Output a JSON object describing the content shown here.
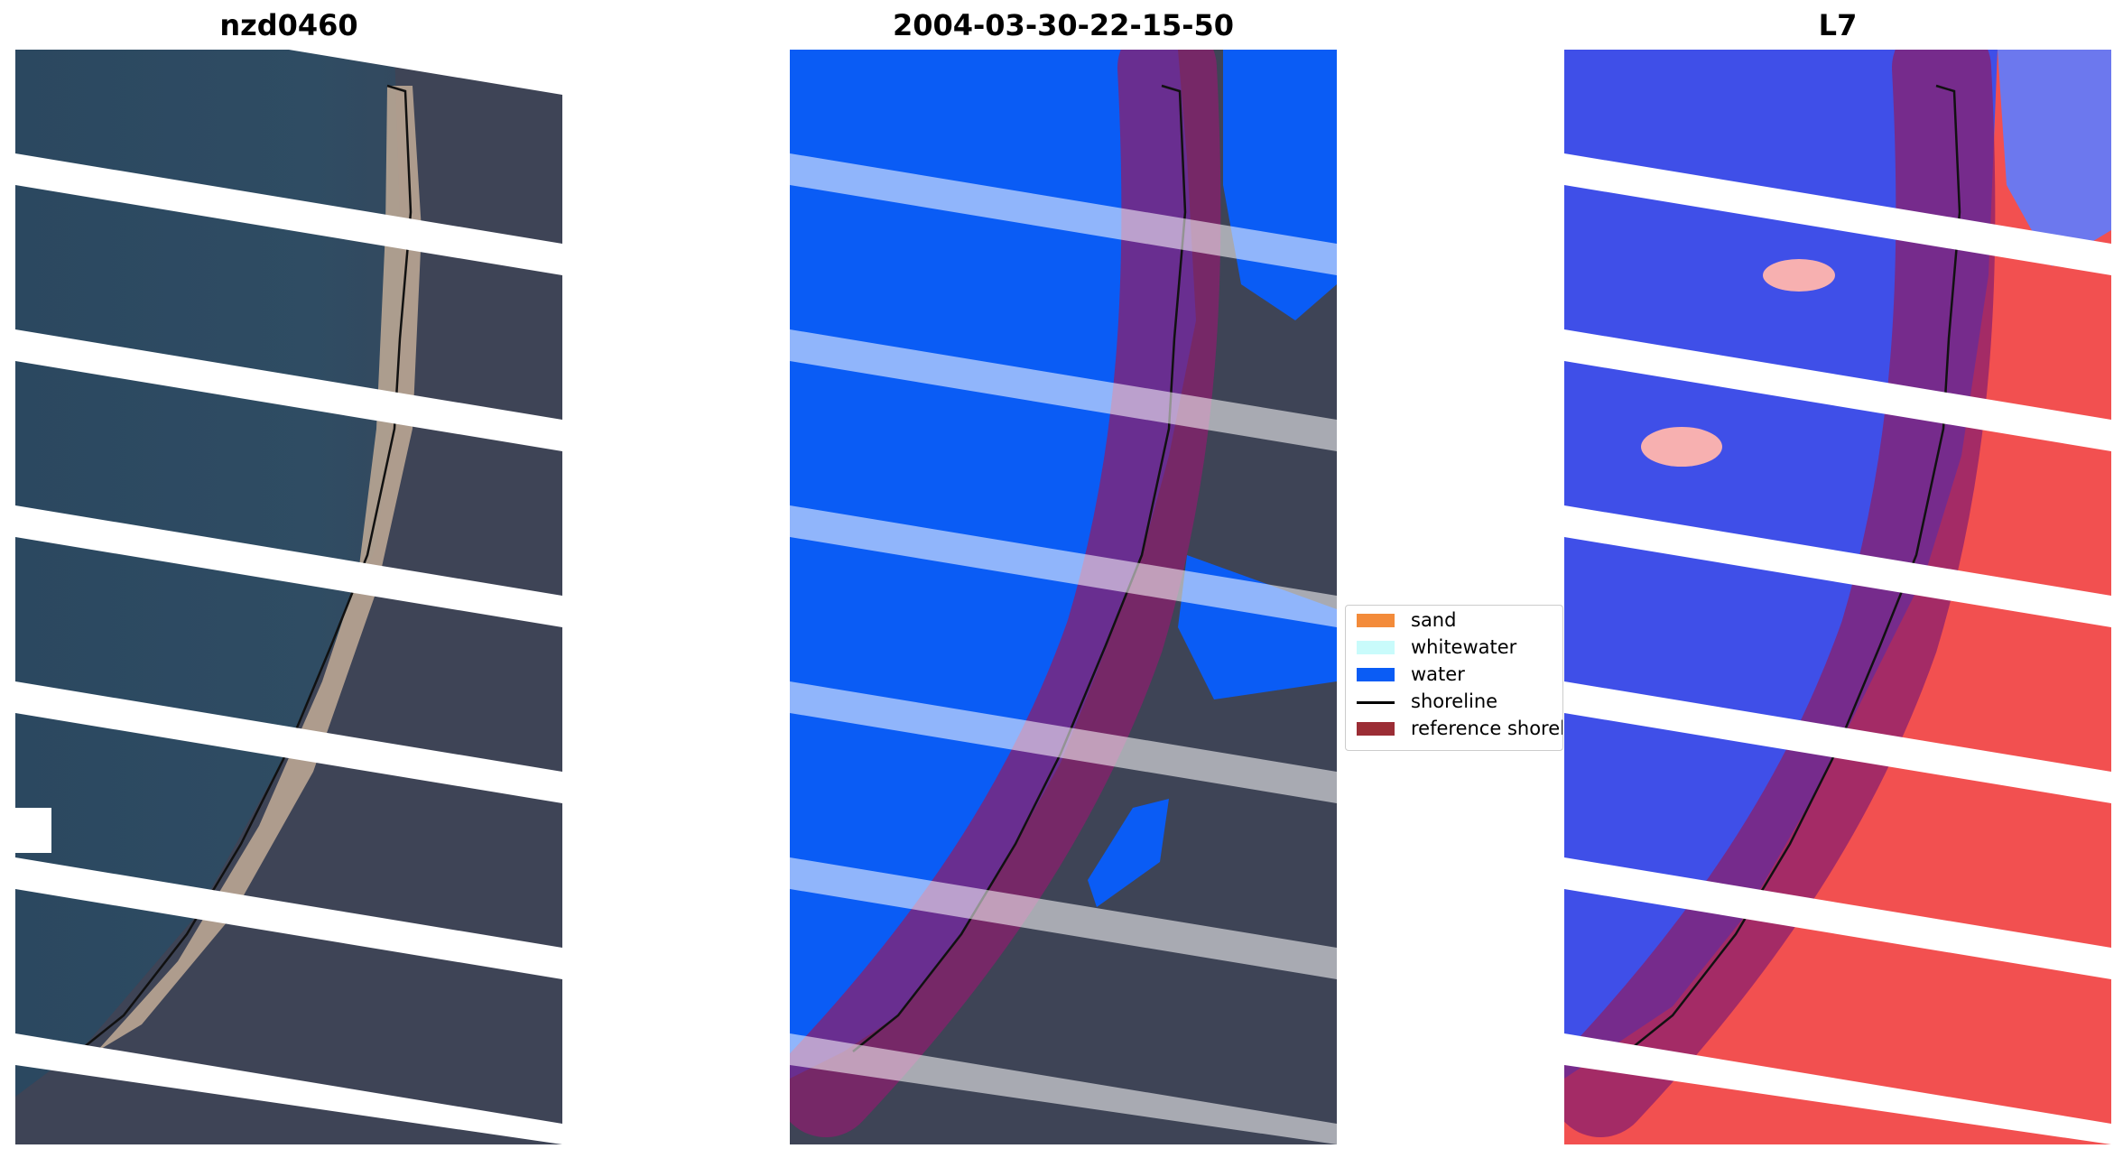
{
  "panels": [
    {
      "title": "nzd0460"
    },
    {
      "title": "2004-03-30-22-15-50"
    },
    {
      "title": "L7"
    }
  ],
  "legend": {
    "items": [
      {
        "label": "sand",
        "color": "#f38b3a",
        "kind": "patch"
      },
      {
        "label": "whitewater",
        "color": "#c9fbfb",
        "kind": "patch"
      },
      {
        "label": "water",
        "color": "#0a5cf5",
        "kind": "patch"
      },
      {
        "label": "shoreline",
        "color": "#000000",
        "kind": "line"
      },
      {
        "label": "reference shoreline",
        "color": "#9b2d35",
        "kind": "patch"
      }
    ]
  },
  "colors": {
    "satellite_water": "#2f4b63",
    "satellite_land": "#3f4657",
    "sand_strip": "#c4ad98",
    "classified_water": "#0a5cf5",
    "reference_buffer": "#8a1f6e",
    "index_negative": "#3f4fe8",
    "index_positive": "#f25050",
    "stripe_gap": "#ffffff"
  }
}
